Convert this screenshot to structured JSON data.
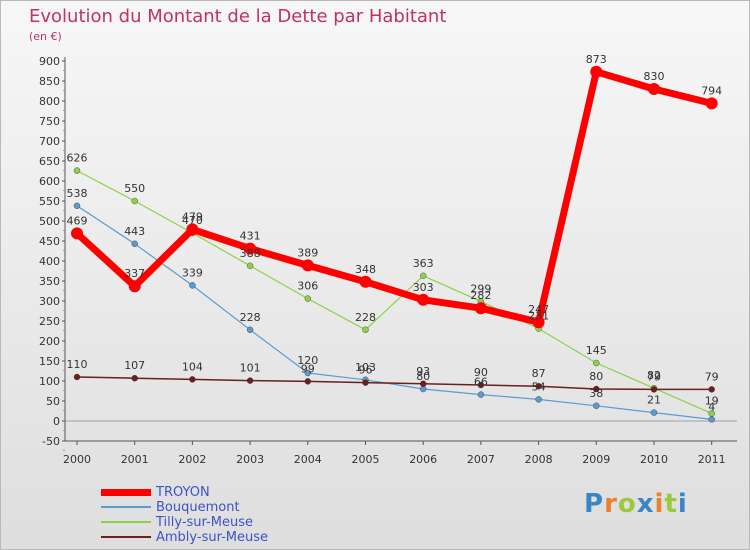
{
  "title": "Evolution du Montant de la Dette par Habitant",
  "unit_label": "(en €)",
  "brand": {
    "text": "Proxiti",
    "letters": [
      "P",
      "r",
      "o",
      "x",
      "i",
      "t",
      "i"
    ],
    "colors": [
      "#3a85c6",
      "#e7812c",
      "#9bc83c",
      "#3a85c6",
      "#e7812c",
      "#9bc83c",
      "#3a85c6"
    ]
  },
  "chart_data": {
    "type": "line",
    "title": "Evolution du Montant de la Dette par Habitant",
    "ylabel": "(en €)",
    "xlabel": "",
    "ylim": [
      -50,
      900
    ],
    "yticks": [
      -50,
      0,
      50,
      100,
      150,
      200,
      250,
      300,
      350,
      400,
      450,
      500,
      550,
      600,
      650,
      700,
      750,
      800,
      850,
      900
    ],
    "categories": [
      "2000",
      "2001",
      "2002",
      "2003",
      "2004",
      "2005",
      "2006",
      "2007",
      "2008",
      "2009",
      "2010",
      "2011"
    ],
    "grid": false,
    "legend_position": "bottom-left",
    "series": [
      {
        "name": "TROYON",
        "color": "#ff0000",
        "line_width": 7,
        "values": [
          469,
          337,
          479,
          431,
          389,
          348,
          303,
          282,
          247,
          873,
          830,
          794
        ]
      },
      {
        "name": "Bouquemont",
        "color": "#5c9bd1",
        "line_width": 1.2,
        "values": [
          538,
          443,
          339,
          228,
          120,
          103,
          80,
          66,
          54,
          38,
          21,
          4
        ]
      },
      {
        "name": "Tilly-sur-Meuse",
        "color": "#8fd04a",
        "line_width": 1.2,
        "values": [
          626,
          550,
          470,
          388,
          306,
          228,
          363,
          299,
          231,
          145,
          82,
          19
        ]
      },
      {
        "name": "Ambly-sur-Meuse",
        "color": "#6b1f1f",
        "line_width": 1.5,
        "values": [
          110,
          107,
          104,
          101,
          99,
          96,
          93,
          90,
          87,
          80,
          79,
          79
        ]
      }
    ]
  }
}
